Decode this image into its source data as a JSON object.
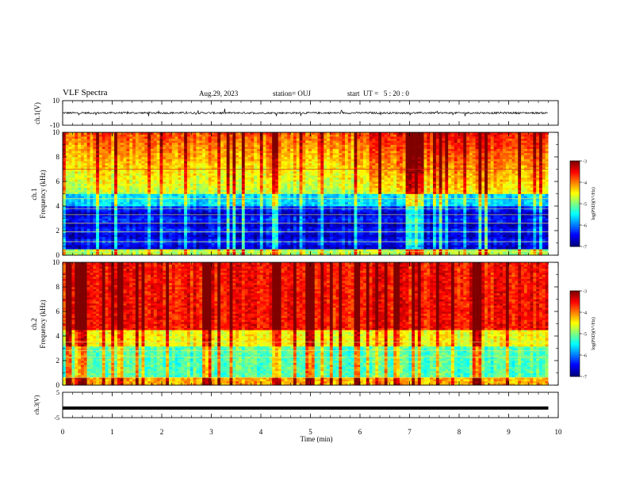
{
  "header": {
    "title": "VLF Spectra",
    "date": "Aug.29, 2023",
    "station": "station= OUJ",
    "start": "start  UT =   5 : 20 : 0"
  },
  "chart_data": [
    {
      "type": "line",
      "ylabel": "ch.1(V)",
      "yticks": [
        "10",
        "-10"
      ],
      "ylim": [
        -10,
        10
      ],
      "description_values": {
        "baseline": 0,
        "noise_amplitude": 1.5
      },
      "xlim": [
        0,
        9.8
      ]
    },
    {
      "type": "heatmap",
      "ylabel": "ch.1\nFrequency (kHz)",
      "ylabel_line1": "ch.1",
      "ylabel_line2": "Frequency (kHz)",
      "yticks": [
        "0",
        "2",
        "4",
        "6",
        "8",
        "10"
      ],
      "ylim": [
        0,
        10
      ],
      "xlim": [
        0,
        9.8
      ],
      "colorbar": {
        "label": "log(PSD)(V²/Hz)",
        "ticks": [
          "-3",
          "-4",
          "-5",
          "-6",
          "-7"
        ],
        "range": [
          -7,
          -3
        ]
      }
    },
    {
      "type": "heatmap",
      "ylabel": "ch.2\nFrequency (kHz)",
      "ylabel_line1": "ch.2",
      "ylabel_line2": "Frequency (kHz)",
      "yticks": [
        "0",
        "2",
        "4",
        "6",
        "8",
        "10"
      ],
      "ylim": [
        0,
        10
      ],
      "xlim": [
        0,
        9.8
      ],
      "colorbar": {
        "label": "log(PSD)(V²/Hz)",
        "ticks": [
          "-3",
          "-4",
          "-5",
          "-6",
          "-7"
        ],
        "range": [
          -7,
          -3
        ]
      }
    },
    {
      "type": "line",
      "ylabel": "ch.3(V)",
      "yticks": [
        "5",
        "-5"
      ],
      "ylim": [
        -5,
        5
      ],
      "values": {
        "constant": -1.2
      },
      "xlim": [
        0,
        9.8
      ]
    }
  ],
  "xaxis": {
    "label": "Time (min)",
    "ticks": [
      "0",
      "1",
      "2",
      "3",
      "4",
      "5",
      "6",
      "7",
      "8",
      "9",
      "10"
    ],
    "xlim": [
      0,
      10
    ]
  },
  "colors": {
    "jet_low": "#00007f",
    "jet_mid": "#00ff00",
    "jet_high": "#7f0000"
  }
}
